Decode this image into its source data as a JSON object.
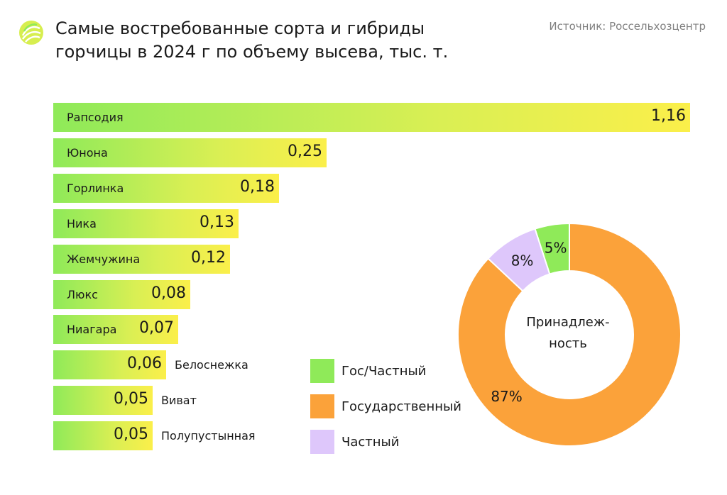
{
  "header": {
    "title_line1": "Самые востребованные сорта и гибриды",
    "title_line2": "горчицы в 2024 г по объему высева, тыс. т.",
    "source": "Источник: Россельхозцентр"
  },
  "colors": {
    "green": "#8fea59",
    "yellow": "#fbef4a",
    "orange": "#fba23a",
    "lavender": "#dec7fb"
  },
  "chart_data": [
    {
      "type": "bar",
      "orientation": "horizontal",
      "title": "Самые востребованные сорта и гибриды горчицы в 2024 г по объему высева, тыс. т.",
      "categories": [
        "Рапсодия",
        "Юнона",
        "Горлинка",
        "Ника",
        "Жемчужина",
        "Люкс",
        "Ниагара",
        "Белоснежка",
        "Виват",
        "Полупустынная"
      ],
      "values": [
        1.16,
        0.25,
        0.18,
        0.13,
        0.12,
        0.08,
        0.07,
        0.06,
        0.05,
        0.05
      ],
      "value_labels": [
        "1,16",
        "0,25",
        "0,18",
        "0,13",
        "0,12",
        "0,08",
        "0,07",
        "0,06",
        "0,05",
        "0,05"
      ],
      "unit": "тыс. т."
    },
    {
      "type": "pie",
      "subtype": "donut",
      "center_label": [
        "Принадлеж-",
        "ность"
      ],
      "slices": [
        {
          "name": "Гос/Частный",
          "value": 5,
          "label": "5%",
          "color": "#8fea59"
        },
        {
          "name": "Государственный",
          "value": 87,
          "label": "87%",
          "color": "#fba23a"
        },
        {
          "name": "Частный",
          "value": 8,
          "label": "8%",
          "color": "#dec7fb"
        }
      ],
      "legend": "left"
    }
  ]
}
